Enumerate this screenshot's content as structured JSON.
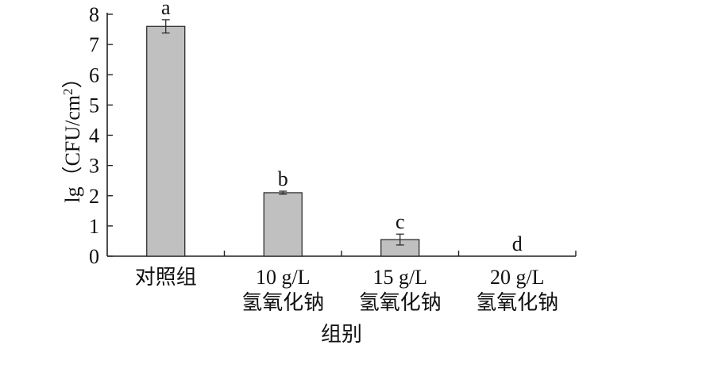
{
  "chart_data": {
    "type": "bar",
    "categories": [
      [
        "对照组"
      ],
      [
        "10 g/L",
        "氢氧化钠"
      ],
      [
        "15 g/L",
        "氢氧化钠"
      ],
      [
        "20 g/L",
        "氢氧化钠"
      ]
    ],
    "values": [
      7.6,
      2.1,
      0.55,
      0
    ],
    "errors": [
      0.22,
      0.05,
      0.18,
      0
    ],
    "significance": [
      "a",
      "b",
      "c",
      "d"
    ],
    "xlabel": "组别",
    "ylabel_prefix": "lg（CFU/cm",
    "ylabel_sup": "2",
    "ylabel_suffix": "）",
    "ylim": [
      0,
      8
    ],
    "yticks": [
      0,
      1,
      2,
      3,
      4,
      5,
      6,
      7,
      8
    ],
    "bar_color": "#c0c0c0",
    "grid": false
  }
}
